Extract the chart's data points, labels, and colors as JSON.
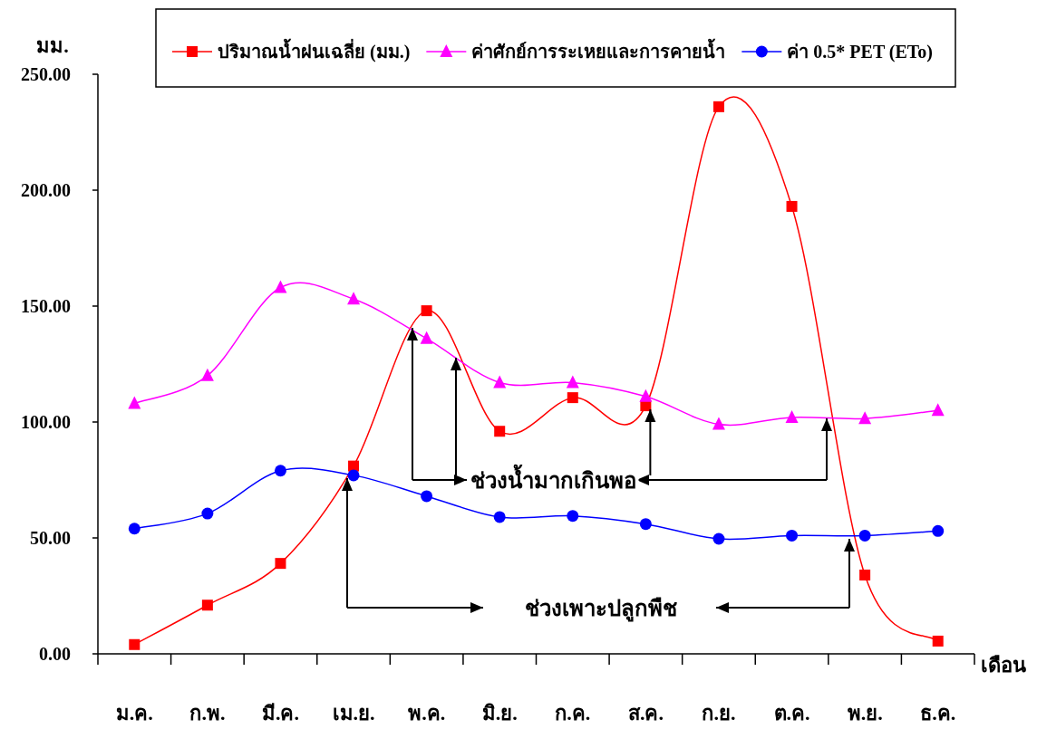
{
  "chart_data": {
    "type": "line",
    "ylabel": "มม.",
    "xlabel": "เดือน",
    "categories": [
      "ม.ค.",
      "ก.พ.",
      "มี.ค.",
      "เม.ย.",
      "พ.ค.",
      "มิ.ย.",
      "ก.ค.",
      "ส.ค.",
      "ก.ย.",
      "ต.ค.",
      "พ.ย.",
      "ธ.ค."
    ],
    "series": [
      {
        "name": "ปริมาณน้ำฝนเฉลี่ย (มม.)",
        "color": "#ff0000",
        "marker": "square",
        "values": [
          4,
          21,
          39,
          81,
          148,
          96,
          110.5,
          107,
          236,
          193,
          34,
          5.5
        ]
      },
      {
        "name": "ค่าศักย์การระเหยและการคายน้ำ",
        "color": "#ff00ff",
        "marker": "triangle",
        "values": [
          108,
          120,
          158,
          153,
          136,
          117,
          117,
          111,
          99,
          102,
          101.5,
          105
        ]
      },
      {
        "name": "ค่า 0.5* PET (ETo)",
        "color": "#0000ff",
        "marker": "circle",
        "values": [
          54,
          60.5,
          79,
          77,
          68,
          59,
          59.5,
          56,
          49.6,
          51,
          51,
          53
        ]
      }
    ],
    "ylim": [
      0,
      250
    ],
    "yticks": [
      {
        "value": 0,
        "label": "0.00"
      },
      {
        "value": 50,
        "label": "50.00"
      },
      {
        "value": 100,
        "label": "100.00"
      },
      {
        "value": 150,
        "label": "150.00"
      },
      {
        "value": 200,
        "label": "200.00"
      },
      {
        "value": 250,
        "label": "250.00"
      }
    ],
    "legend": "top",
    "grid": false,
    "line_style": "solid",
    "annotations": [
      {
        "text": "ช่วงน้ำมากเกินพอ",
        "x": "ส.ค.",
        "y": 107
      },
      "ช่วงเพาะปลูกพืช"
    ]
  }
}
